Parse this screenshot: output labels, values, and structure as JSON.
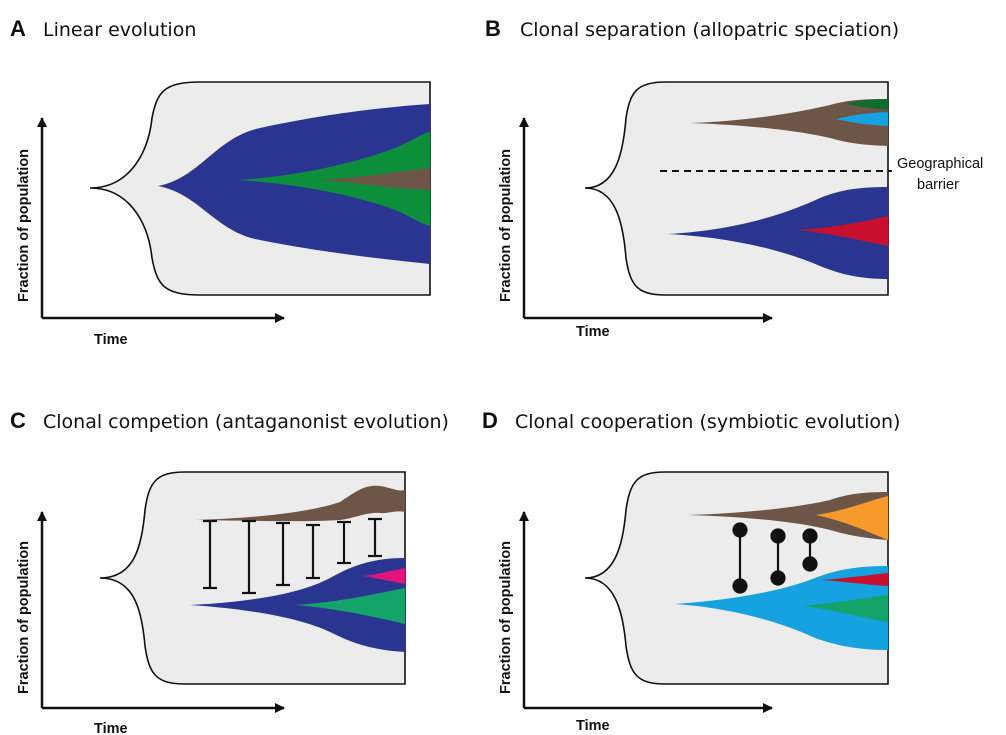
{
  "panels": [
    {
      "letter": "A",
      "title": "Linear evolution",
      "xlabel": "Time",
      "ylabel": "Fraction of population"
    },
    {
      "letter": "B",
      "title": "Clonal separation (allopatric speciation)",
      "xlabel": "Time",
      "ylabel": "Fraction of population",
      "annotation_line1": "Geographical",
      "annotation_line2": "barrier"
    },
    {
      "letter": "C",
      "title": "Clonal competion (antaganonist evolution)",
      "xlabel": "Time",
      "ylabel": "Fraction of population"
    },
    {
      "letter": "D",
      "title": "Clonal cooperation (symbiotic evolution)",
      "xlabel": "Time",
      "ylabel": "Fraction of population"
    }
  ],
  "colors": {
    "population": "#ececec",
    "blue": "#2a3591",
    "green": "#0b8f3a",
    "brown": "#6d5548",
    "light_blue": "#15a2e0",
    "red": "#c8102e",
    "magenta": "#e5127d",
    "sea_green": "#14a46a",
    "dark_green": "#0c6d2f",
    "orange": "#f59a2b",
    "ink": "#111111"
  }
}
